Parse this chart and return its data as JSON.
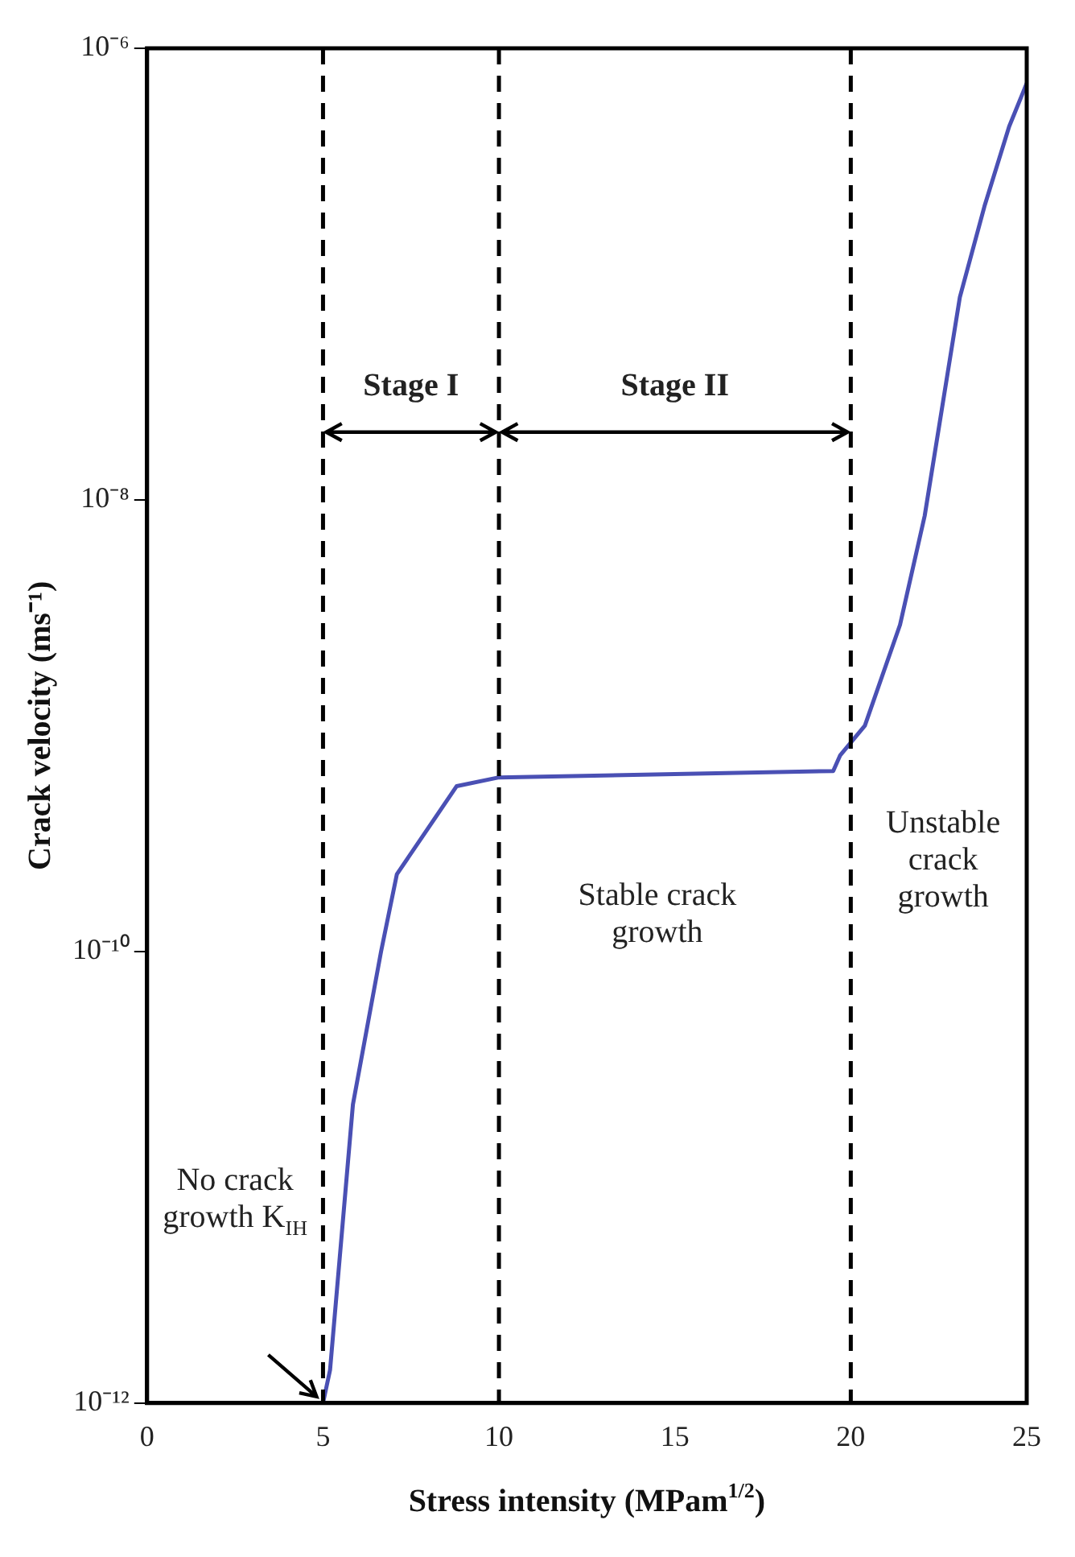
{
  "chart_data": {
    "type": "line",
    "xlabel": "Stress intensity (MPam$^{1/2}$)",
    "ylabel": "Crack velocity (ms⁻¹)",
    "series": [
      {
        "color": "#4a50b4",
        "x": [
          5,
          5.2,
          5.85,
          6.65,
          7.1,
          8.8,
          10,
          15,
          19.5,
          19.7,
          20.4,
          21.4,
          22.1,
          23.1,
          23.8,
          24.5,
          25
        ],
        "values": [
          1e-12,
          1.4e-12,
          2.1e-11,
          1e-10,
          2.2e-10,
          5.4e-10,
          5.9e-10,
          6.1e-10,
          6.3e-10,
          7.4e-10,
          1e-09,
          2.8e-09,
          8.5e-09,
          7.9e-08,
          2e-07,
          4.5e-07,
          7e-07
        ]
      }
    ],
    "xlim": [
      0,
      25
    ],
    "xticks": [
      0,
      5,
      10,
      15,
      20,
      25
    ],
    "ylim": [
      1e-12,
      1e-06
    ],
    "yticks": [
      {
        "value": 1e-12,
        "label": "10⁻¹²"
      },
      {
        "value": 1e-10,
        "label": "10⁻¹⁰"
      },
      {
        "value": 1e-08,
        "label": "10⁻⁸"
      },
      {
        "value": 1e-06,
        "label": "10⁻⁶"
      }
    ],
    "log": "y",
    "grid": false,
    "legend": false,
    "marker": "none",
    "line_style": "solid",
    "ref_lines": [
      {
        "axis": "x",
        "value": 5,
        "color": "#000000",
        "line_style": "dashed"
      },
      {
        "axis": "x",
        "value": 10,
        "color": "#000000",
        "line_style": "dashed"
      },
      {
        "axis": "x",
        "value": 20,
        "color": "#000000",
        "line_style": "dashed"
      }
    ],
    "annotations": [
      "Stage I",
      "Stage II",
      "Unstable crack growth",
      "Stable crack growth",
      "No crack growth K$_{IH}$"
    ]
  }
}
